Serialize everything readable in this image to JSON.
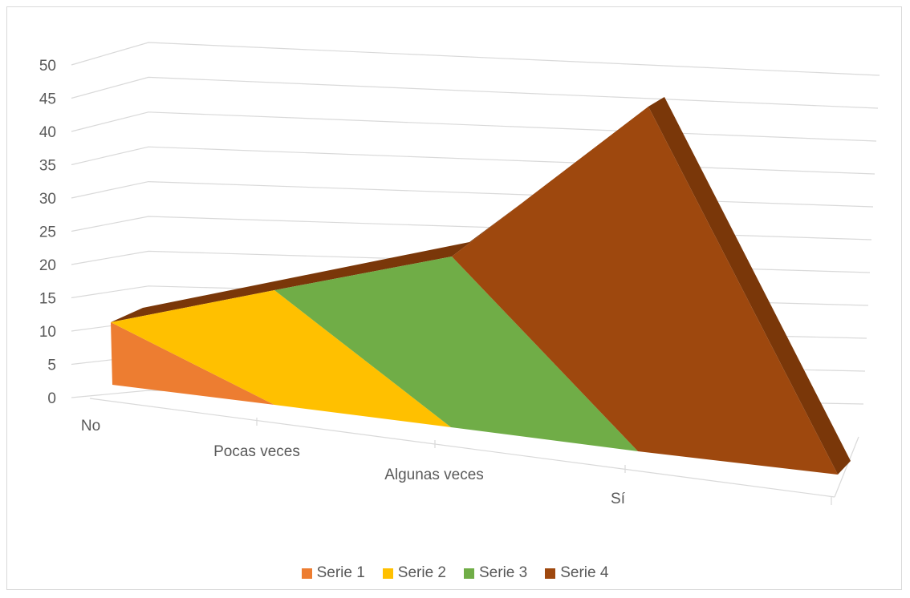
{
  "chart_data": {
    "type": "area",
    "style": "3d",
    "categories": [
      "No",
      "Pocas veces",
      "Algunas veces",
      "Sí"
    ],
    "series": [
      {
        "name": "Serie 1",
        "color": "#ed7d31",
        "values": [
          11,
          0,
          0,
          0
        ]
      },
      {
        "name": "Serie 2",
        "color": "#ffc000",
        "values": [
          0,
          15,
          0,
          0
        ]
      },
      {
        "name": "Serie 3",
        "color": "#70ad47",
        "values": [
          0,
          0,
          21,
          0
        ]
      },
      {
        "name": "Serie 4",
        "color": "#9e480e",
        "values": [
          0,
          0,
          0,
          44
        ]
      }
    ],
    "ylim": [
      0,
      50
    ],
    "yticks": [
      0,
      5,
      10,
      15,
      20,
      25,
      30,
      35,
      40,
      45,
      50
    ],
    "grid": true,
    "legend_position": "bottom",
    "title": "",
    "xlabel": "",
    "ylabel": ""
  }
}
